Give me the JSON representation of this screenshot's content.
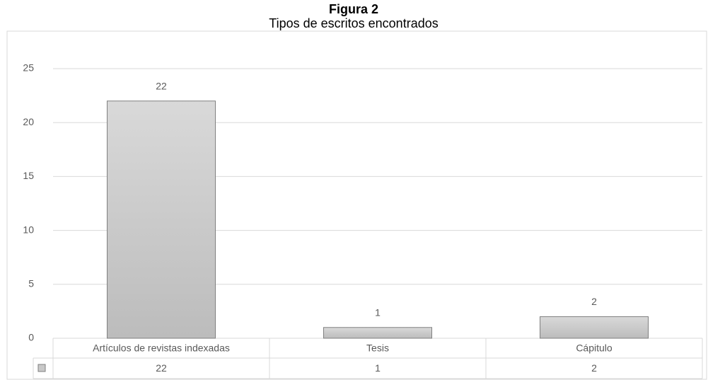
{
  "chart_data": {
    "type": "bar",
    "title": "Figura 2",
    "subtitle": "Tipos de escritos encontrados",
    "categories": [
      "Artículos de revistas indexadas",
      "Tesis",
      "Cápitulo"
    ],
    "values": [
      22,
      1,
      2
    ],
    "color": "#c8c8c8",
    "ylim": [
      0,
      25
    ],
    "yticks": [
      0,
      5,
      10,
      15,
      20,
      25
    ],
    "grid": true
  }
}
